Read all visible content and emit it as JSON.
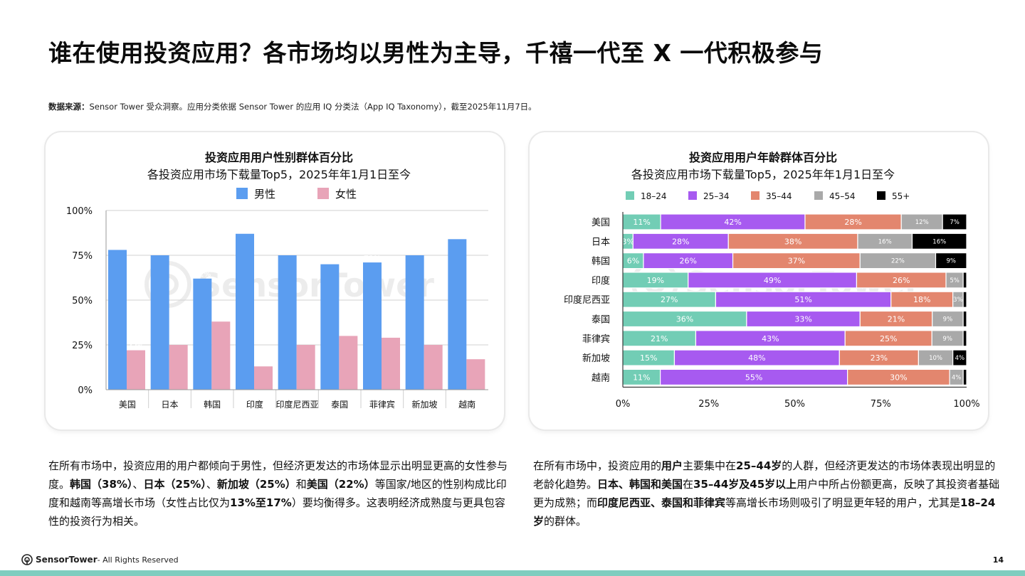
{
  "page": {
    "title": "谁在使用投资应用？各市场均以男性为主导，千禧一代至 X 一代积极参与",
    "source_label": "数据来源：",
    "source_text": "Sensor Tower 受众洞察。应用分类依据 Sensor Tower 的应用 IQ 分类法（App IQ Taxonomy），截至2025年11月7日。",
    "watermark": "SensorTower",
    "left_paragraph": [
      {
        "t": "在所有市场中，投资应用的用户都倾向于男性，但经济更发达的市场体显示出明显更高的女性参与度。",
        "b": false
      },
      {
        "t": "韩国（38%）",
        "b": true
      },
      {
        "t": "、",
        "b": false
      },
      {
        "t": "日本（25%）",
        "b": true
      },
      {
        "t": "、",
        "b": false
      },
      {
        "t": "新加坡（25%）",
        "b": true
      },
      {
        "t": "和",
        "b": false
      },
      {
        "t": "美国（22%）",
        "b": true
      },
      {
        "t": "等国家/地区的性别构成比印度和越南等高增长市场（女性占比仅为",
        "b": false
      },
      {
        "t": "13%至17%",
        "b": true
      },
      {
        "t": "）要均衡得多。这表明经济成熟度与更具包容性的投资行为相关。",
        "b": false
      }
    ],
    "right_paragraph": [
      {
        "t": "在所有市场中，投资应用的",
        "b": false
      },
      {
        "t": "用户",
        "b": true
      },
      {
        "t": "主要集中在",
        "b": false
      },
      {
        "t": "25–44岁",
        "b": true
      },
      {
        "t": "的人群，但经济更发达的市场体表现出明显的老龄化趋势。",
        "b": false
      },
      {
        "t": "日本、韩国和美国",
        "b": true
      },
      {
        "t": "在",
        "b": false
      },
      {
        "t": "35–44岁及45岁以上",
        "b": true
      },
      {
        "t": "用户中所占份额更高，反映了其投资者基础更为成熟；而",
        "b": false
      },
      {
        "t": "印度尼西亚、泰国和菲律宾",
        "b": true
      },
      {
        "t": "等高增长市场则吸引了明显更年轻的用户，尤其是",
        "b": false
      },
      {
        "t": "18–24岁",
        "b": true
      },
      {
        "t": "的群体。",
        "b": false
      }
    ],
    "footer_brand": "SensorTower",
    "footer_text": " - All Rights Reserved",
    "page_number": "14"
  },
  "chart_data": [
    {
      "type": "bar",
      "title": "投资应用用户性别群体百分比",
      "subtitle": "各投资应用市场下载量Top5，2025年年1月1日至今",
      "categories": [
        "美国",
        "日本",
        "韩国",
        "印度",
        "印度尼西亚",
        "泰国",
        "菲律宾",
        "新加坡",
        "越南"
      ],
      "series": [
        {
          "name": "男性",
          "color": "#5b9df0",
          "values": [
            78,
            75,
            62,
            87,
            75,
            70,
            71,
            75,
            84
          ]
        },
        {
          "name": "女性",
          "color": "#e8a4b8",
          "values": [
            22,
            25,
            38,
            13,
            25,
            30,
            29,
            25,
            17
          ]
        }
      ],
      "ylim": [
        0,
        100
      ],
      "yticks": [
        "0%",
        "25%",
        "50%",
        "75%",
        "100%"
      ],
      "legend": "top",
      "grid": true
    },
    {
      "type": "bar",
      "orientation": "horizontal",
      "stacked": true,
      "title": "投资应用用户年龄群体百分比",
      "subtitle": "各投资应用市场下载量Top5，2025年年1月1日至今",
      "categories": [
        "美国",
        "日本",
        "韩国",
        "印度",
        "印度尼西亚",
        "泰国",
        "菲律宾",
        "新加坡",
        "越南"
      ],
      "series": [
        {
          "name": "18–24",
          "color": "#72cdb5",
          "values": [
            11,
            3,
            6,
            19,
            27,
            36,
            21,
            15,
            11
          ]
        },
        {
          "name": "25–34",
          "color": "#a75af0",
          "values": [
            42,
            28,
            26,
            49,
            51,
            33,
            43,
            48,
            55
          ]
        },
        {
          "name": "35–44",
          "color": "#e3866e",
          "values": [
            28,
            38,
            37,
            26,
            18,
            21,
            25,
            23,
            30
          ]
        },
        {
          "name": "45–54",
          "color": "#a9a9a9",
          "values": [
            12,
            16,
            22,
            5,
            3,
            9,
            9,
            10,
            4
          ]
        },
        {
          "name": "55+",
          "color": "#000000",
          "values": [
            7,
            16,
            9,
            1,
            1,
            1,
            1,
            4,
            1
          ]
        }
      ],
      "xlim": [
        0,
        100
      ],
      "xticks": [
        "0%",
        "25%",
        "50%",
        "75%",
        "100%"
      ],
      "legend": "top"
    }
  ]
}
